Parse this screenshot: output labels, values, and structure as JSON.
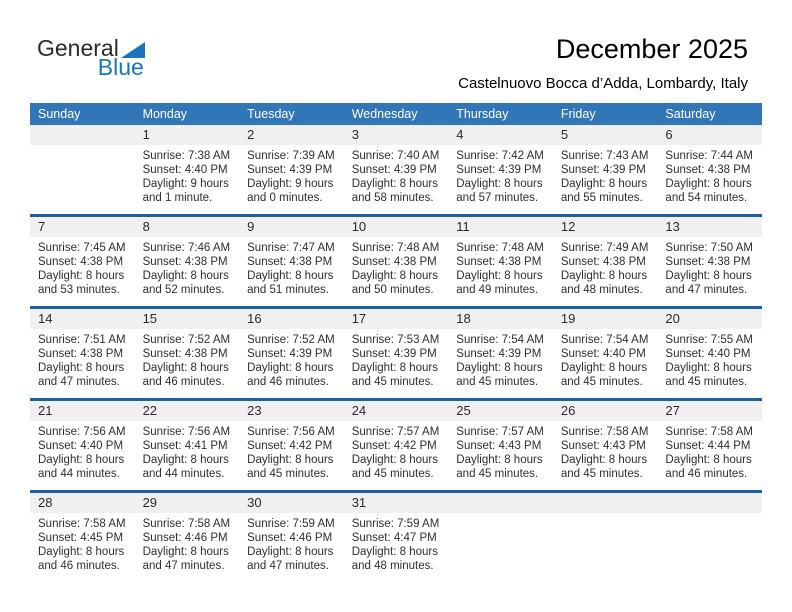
{
  "logo": {
    "word1": "General",
    "word2": "Blue",
    "triangle_icon": "flag-triangle",
    "blue_color": "#1b75bc",
    "dark_color": "#2b2b2b"
  },
  "header": {
    "title": "December 2025",
    "subtitle": "Castelnuovo Bocca d’Adda, Lombardy, Italy"
  },
  "colors": {
    "weekday_header_bg": "#3176b7",
    "weekday_header_text": "#ffffff",
    "week_divider": "#1f5fa0",
    "date_band_bg": "#f0f0f0",
    "body_text": "#2e2e2e"
  },
  "weekdays": [
    "Sunday",
    "Monday",
    "Tuesday",
    "Wednesday",
    "Thursday",
    "Friday",
    "Saturday"
  ],
  "weeks": [
    {
      "days": [
        {
          "date": "",
          "lines": []
        },
        {
          "date": "1",
          "lines": [
            "Sunrise: 7:38 AM",
            "Sunset: 4:40 PM",
            "Daylight: 9 hours",
            "and 1 minute."
          ]
        },
        {
          "date": "2",
          "lines": [
            "Sunrise: 7:39 AM",
            "Sunset: 4:39 PM",
            "Daylight: 9 hours",
            "and 0 minutes."
          ]
        },
        {
          "date": "3",
          "lines": [
            "Sunrise: 7:40 AM",
            "Sunset: 4:39 PM",
            "Daylight: 8 hours",
            "and 58 minutes."
          ]
        },
        {
          "date": "4",
          "lines": [
            "Sunrise: 7:42 AM",
            "Sunset: 4:39 PM",
            "Daylight: 8 hours",
            "and 57 minutes."
          ]
        },
        {
          "date": "5",
          "lines": [
            "Sunrise: 7:43 AM",
            "Sunset: 4:39 PM",
            "Daylight: 8 hours",
            "and 55 minutes."
          ]
        },
        {
          "date": "6",
          "lines": [
            "Sunrise: 7:44 AM",
            "Sunset: 4:38 PM",
            "Daylight: 8 hours",
            "and 54 minutes."
          ]
        }
      ]
    },
    {
      "days": [
        {
          "date": "7",
          "lines": [
            "Sunrise: 7:45 AM",
            "Sunset: 4:38 PM",
            "Daylight: 8 hours",
            "and 53 minutes."
          ]
        },
        {
          "date": "8",
          "lines": [
            "Sunrise: 7:46 AM",
            "Sunset: 4:38 PM",
            "Daylight: 8 hours",
            "and 52 minutes."
          ]
        },
        {
          "date": "9",
          "lines": [
            "Sunrise: 7:47 AM",
            "Sunset: 4:38 PM",
            "Daylight: 8 hours",
            "and 51 minutes."
          ]
        },
        {
          "date": "10",
          "lines": [
            "Sunrise: 7:48 AM",
            "Sunset: 4:38 PM",
            "Daylight: 8 hours",
            "and 50 minutes."
          ]
        },
        {
          "date": "11",
          "lines": [
            "Sunrise: 7:48 AM",
            "Sunset: 4:38 PM",
            "Daylight: 8 hours",
            "and 49 minutes."
          ]
        },
        {
          "date": "12",
          "lines": [
            "Sunrise: 7:49 AM",
            "Sunset: 4:38 PM",
            "Daylight: 8 hours",
            "and 48 minutes."
          ]
        },
        {
          "date": "13",
          "lines": [
            "Sunrise: 7:50 AM",
            "Sunset: 4:38 PM",
            "Daylight: 8 hours",
            "and 47 minutes."
          ]
        }
      ]
    },
    {
      "days": [
        {
          "date": "14",
          "lines": [
            "Sunrise: 7:51 AM",
            "Sunset: 4:38 PM",
            "Daylight: 8 hours",
            "and 47 minutes."
          ]
        },
        {
          "date": "15",
          "lines": [
            "Sunrise: 7:52 AM",
            "Sunset: 4:38 PM",
            "Daylight: 8 hours",
            "and 46 minutes."
          ]
        },
        {
          "date": "16",
          "lines": [
            "Sunrise: 7:52 AM",
            "Sunset: 4:39 PM",
            "Daylight: 8 hours",
            "and 46 minutes."
          ]
        },
        {
          "date": "17",
          "lines": [
            "Sunrise: 7:53 AM",
            "Sunset: 4:39 PM",
            "Daylight: 8 hours",
            "and 45 minutes."
          ]
        },
        {
          "date": "18",
          "lines": [
            "Sunrise: 7:54 AM",
            "Sunset: 4:39 PM",
            "Daylight: 8 hours",
            "and 45 minutes."
          ]
        },
        {
          "date": "19",
          "lines": [
            "Sunrise: 7:54 AM",
            "Sunset: 4:40 PM",
            "Daylight: 8 hours",
            "and 45 minutes."
          ]
        },
        {
          "date": "20",
          "lines": [
            "Sunrise: 7:55 AM",
            "Sunset: 4:40 PM",
            "Daylight: 8 hours",
            "and 45 minutes."
          ]
        }
      ]
    },
    {
      "days": [
        {
          "date": "21",
          "lines": [
            "Sunrise: 7:56 AM",
            "Sunset: 4:40 PM",
            "Daylight: 8 hours",
            "and 44 minutes."
          ]
        },
        {
          "date": "22",
          "lines": [
            "Sunrise: 7:56 AM",
            "Sunset: 4:41 PM",
            "Daylight: 8 hours",
            "and 44 minutes."
          ]
        },
        {
          "date": "23",
          "lines": [
            "Sunrise: 7:56 AM",
            "Sunset: 4:42 PM",
            "Daylight: 8 hours",
            "and 45 minutes."
          ]
        },
        {
          "date": "24",
          "lines": [
            "Sunrise: 7:57 AM",
            "Sunset: 4:42 PM",
            "Daylight: 8 hours",
            "and 45 minutes."
          ]
        },
        {
          "date": "25",
          "lines": [
            "Sunrise: 7:57 AM",
            "Sunset: 4:43 PM",
            "Daylight: 8 hours",
            "and 45 minutes."
          ]
        },
        {
          "date": "26",
          "lines": [
            "Sunrise: 7:58 AM",
            "Sunset: 4:43 PM",
            "Daylight: 8 hours",
            "and 45 minutes."
          ]
        },
        {
          "date": "27",
          "lines": [
            "Sunrise: 7:58 AM",
            "Sunset: 4:44 PM",
            "Daylight: 8 hours",
            "and 46 minutes."
          ]
        }
      ]
    },
    {
      "days": [
        {
          "date": "28",
          "lines": [
            "Sunrise: 7:58 AM",
            "Sunset: 4:45 PM",
            "Daylight: 8 hours",
            "and 46 minutes."
          ]
        },
        {
          "date": "29",
          "lines": [
            "Sunrise: 7:58 AM",
            "Sunset: 4:46 PM",
            "Daylight: 8 hours",
            "and 47 minutes."
          ]
        },
        {
          "date": "30",
          "lines": [
            "Sunrise: 7:59 AM",
            "Sunset: 4:46 PM",
            "Daylight: 8 hours",
            "and 47 minutes."
          ]
        },
        {
          "date": "31",
          "lines": [
            "Sunrise: 7:59 AM",
            "Sunset: 4:47 PM",
            "Daylight: 8 hours",
            "and 48 minutes."
          ]
        },
        {
          "date": "",
          "lines": []
        },
        {
          "date": "",
          "lines": []
        },
        {
          "date": "",
          "lines": []
        }
      ]
    }
  ]
}
